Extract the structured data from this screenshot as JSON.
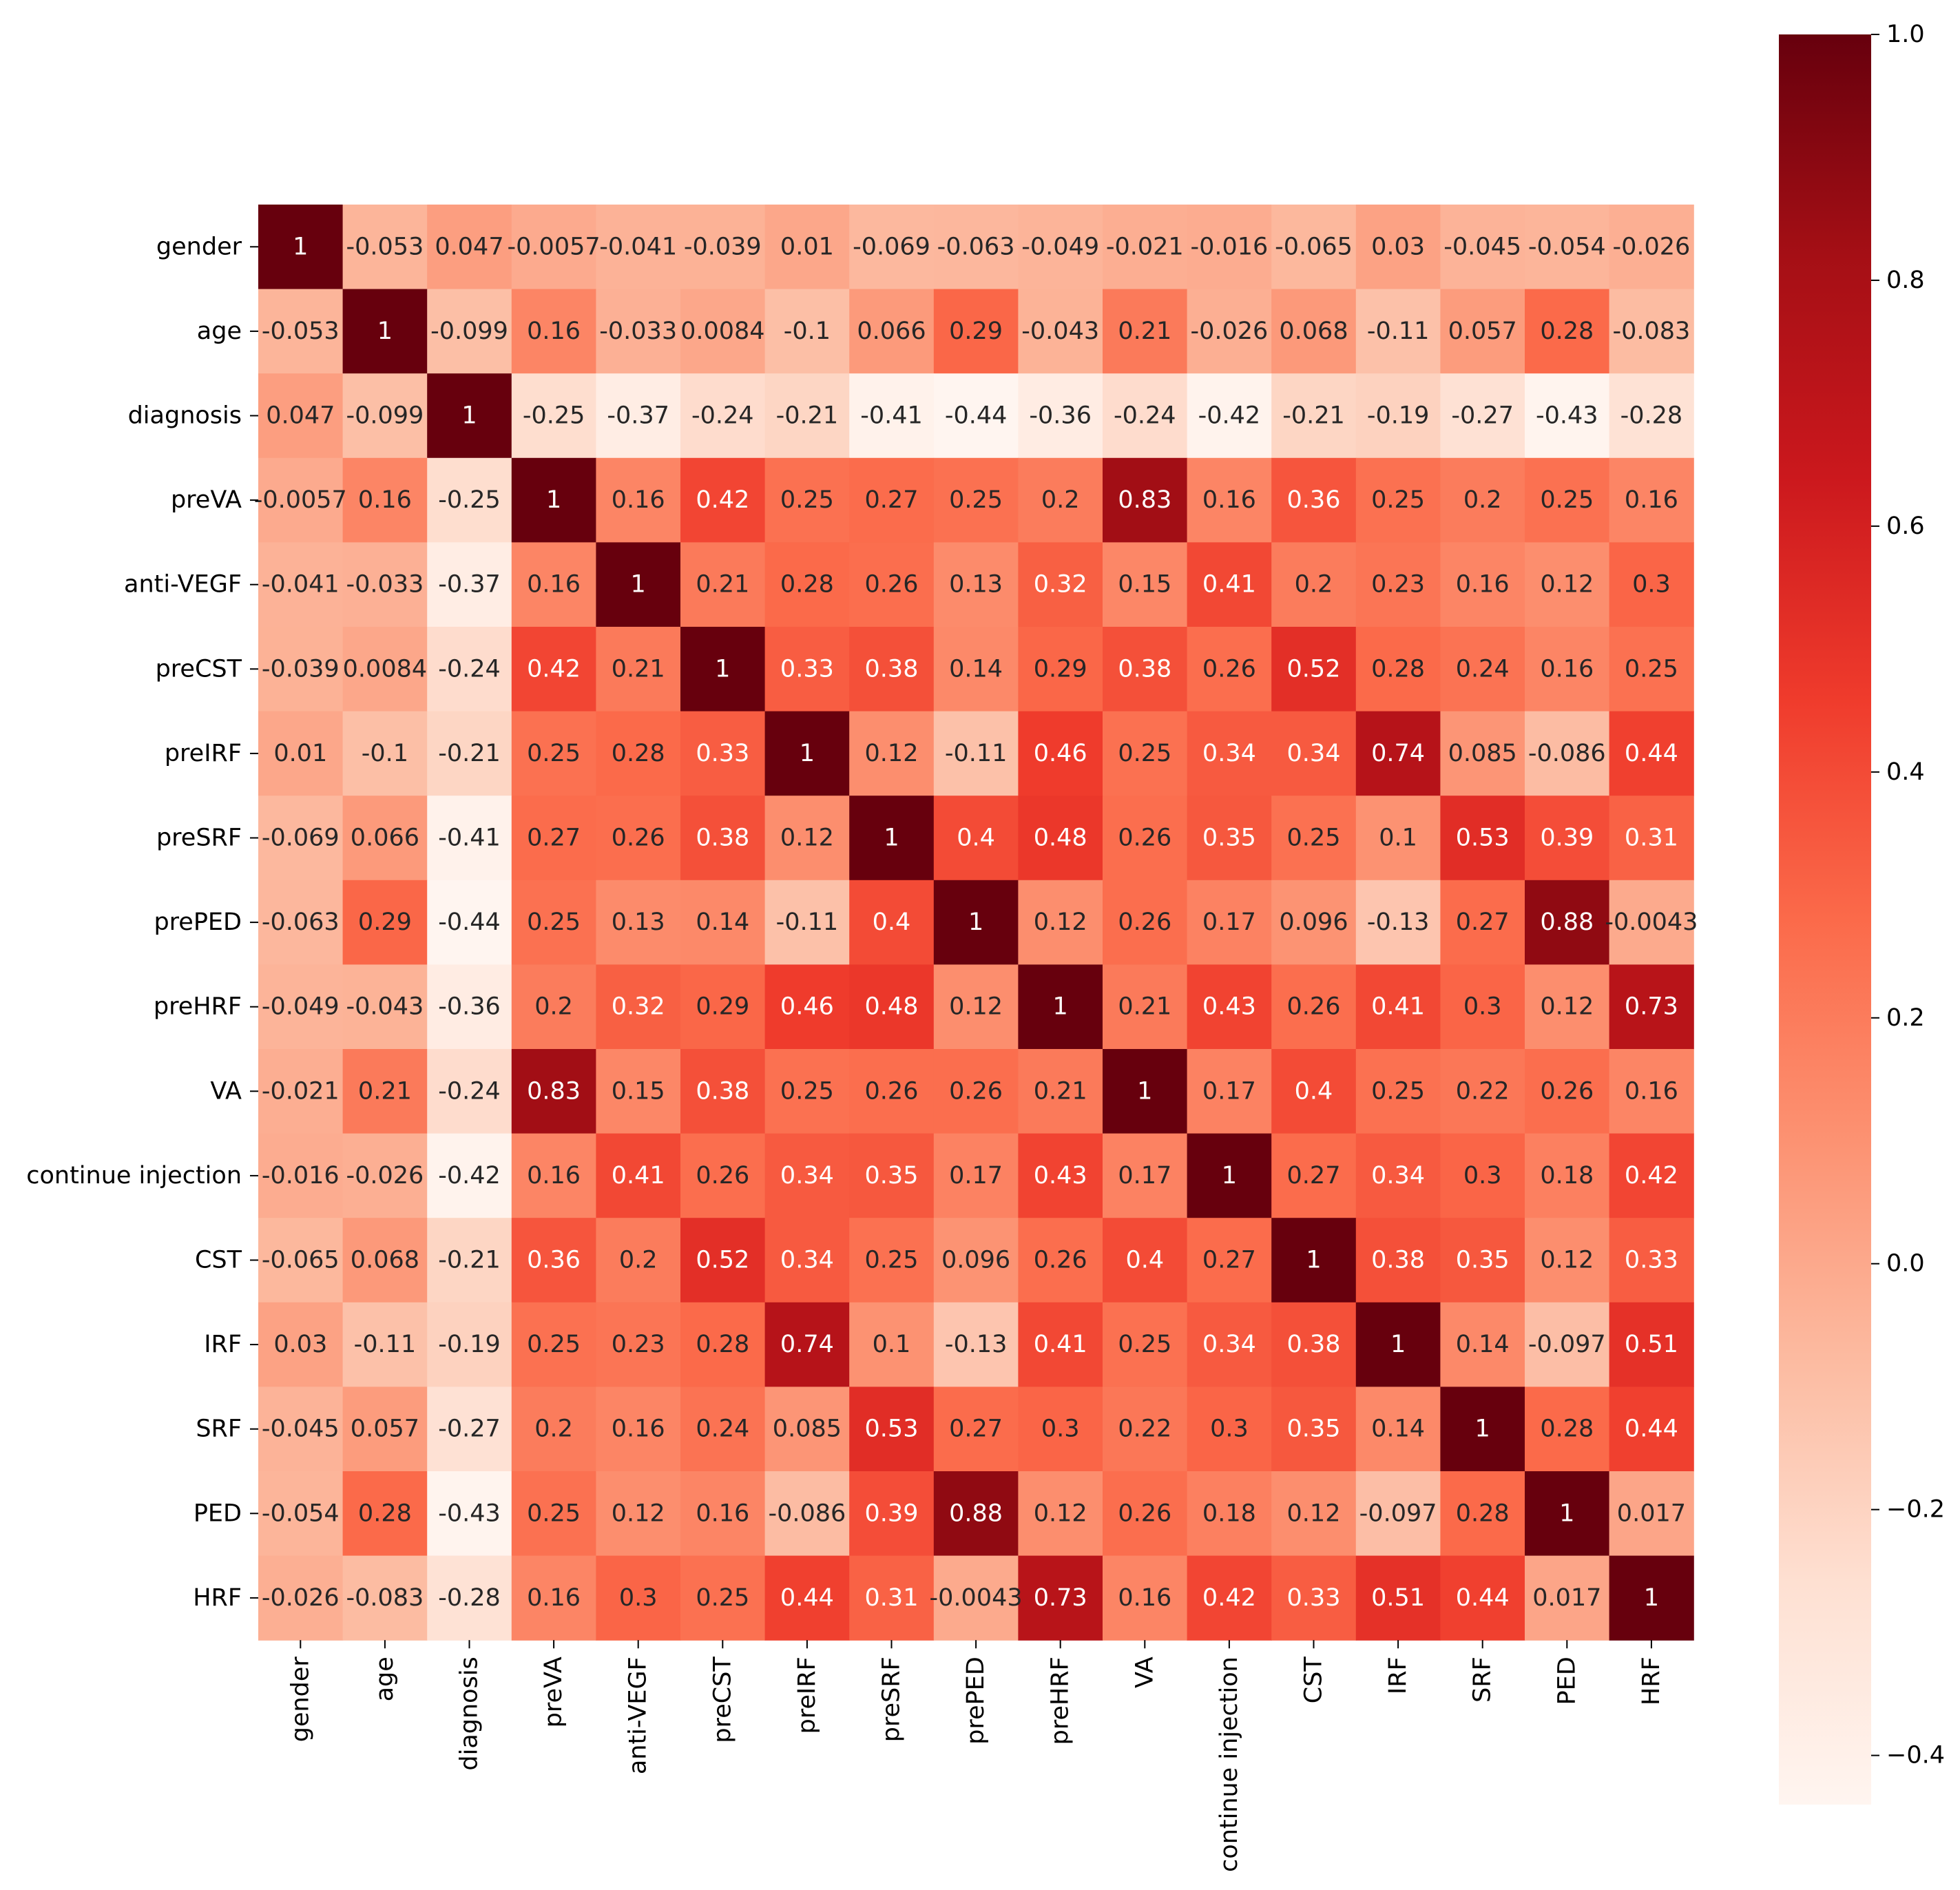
{
  "chart_data": {
    "type": "heatmap",
    "title": "",
    "xlabel": "",
    "ylabel": "",
    "colormap": "Reds",
    "vmin": -0.44,
    "vmax": 1.0,
    "colors": [
      "#fff5f0",
      "#fee0d2",
      "#fcbba1",
      "#fc9272",
      "#fb6a4a",
      "#ef3b2c",
      "#cb181d",
      "#a50f15",
      "#67000d"
    ],
    "labels": [
      "gender",
      "age",
      "diagnosis",
      "preVA",
      "anti-VEGF",
      "preCST",
      "preIRF",
      "preSRF",
      "prePED",
      "preHRF",
      "VA",
      "continue injection",
      "CST",
      "IRF",
      "SRF",
      "PED",
      "HRF"
    ],
    "display": [
      [
        "1",
        "-0.053",
        "0.047",
        "-0.0057",
        "-0.041",
        "-0.039",
        "0.01",
        "-0.069",
        "-0.063",
        "-0.049",
        "-0.021",
        "-0.016",
        "-0.065",
        "0.03",
        "-0.045",
        "-0.054",
        "-0.026"
      ],
      [
        "-0.053",
        "1",
        "-0.099",
        "0.16",
        "-0.033",
        "0.0084",
        "-0.1",
        "0.066",
        "0.29",
        "-0.043",
        "0.21",
        "-0.026",
        "0.068",
        "-0.11",
        "0.057",
        "0.28",
        "-0.083"
      ],
      [
        "0.047",
        "-0.099",
        "1",
        "-0.25",
        "-0.37",
        "-0.24",
        "-0.21",
        "-0.41",
        "-0.44",
        "-0.36",
        "-0.24",
        "-0.42",
        "-0.21",
        "-0.19",
        "-0.27",
        "-0.43",
        "-0.28"
      ],
      [
        "-0.0057",
        "0.16",
        "-0.25",
        "1",
        "0.16",
        "0.42",
        "0.25",
        "0.27",
        "0.25",
        "0.2",
        "0.83",
        "0.16",
        "0.36",
        "0.25",
        "0.2",
        "0.25",
        "0.16"
      ],
      [
        "-0.041",
        "-0.033",
        "-0.37",
        "0.16",
        "1",
        "0.21",
        "0.28",
        "0.26",
        "0.13",
        "0.32",
        "0.15",
        "0.41",
        "0.2",
        "0.23",
        "0.16",
        "0.12",
        "0.3"
      ],
      [
        "-0.039",
        "0.0084",
        "-0.24",
        "0.42",
        "0.21",
        "1",
        "0.33",
        "0.38",
        "0.14",
        "0.29",
        "0.38",
        "0.26",
        "0.52",
        "0.28",
        "0.24",
        "0.16",
        "0.25"
      ],
      [
        "0.01",
        "-0.1",
        "-0.21",
        "0.25",
        "0.28",
        "0.33",
        "1",
        "0.12",
        "-0.11",
        "0.46",
        "0.25",
        "0.34",
        "0.34",
        "0.74",
        "0.085",
        "-0.086",
        "0.44"
      ],
      [
        "-0.069",
        "0.066",
        "-0.41",
        "0.27",
        "0.26",
        "0.38",
        "0.12",
        "1",
        "0.4",
        "0.48",
        "0.26",
        "0.35",
        "0.25",
        "0.1",
        "0.53",
        "0.39",
        "0.31"
      ],
      [
        "-0.063",
        "0.29",
        "-0.44",
        "0.25",
        "0.13",
        "0.14",
        "-0.11",
        "0.4",
        "1",
        "0.12",
        "0.26",
        "0.17",
        "0.096",
        "-0.13",
        "0.27",
        "0.88",
        "-0.0043"
      ],
      [
        "-0.049",
        "-0.043",
        "-0.36",
        "0.2",
        "0.32",
        "0.29",
        "0.46",
        "0.48",
        "0.12",
        "1",
        "0.21",
        "0.43",
        "0.26",
        "0.41",
        "0.3",
        "0.12",
        "0.73"
      ],
      [
        "-0.021",
        "0.21",
        "-0.24",
        "0.83",
        "0.15",
        "0.38",
        "0.25",
        "0.26",
        "0.26",
        "0.21",
        "1",
        "0.17",
        "0.4",
        "0.25",
        "0.22",
        "0.26",
        "0.16"
      ],
      [
        "-0.016",
        "-0.026",
        "-0.42",
        "0.16",
        "0.41",
        "0.26",
        "0.34",
        "0.35",
        "0.17",
        "0.43",
        "0.17",
        "1",
        "0.27",
        "0.34",
        "0.3",
        "0.18",
        "0.42"
      ],
      [
        "-0.065",
        "0.068",
        "-0.21",
        "0.36",
        "0.2",
        "0.52",
        "0.34",
        "0.25",
        "0.096",
        "0.26",
        "0.4",
        "0.27",
        "1",
        "0.38",
        "0.35",
        "0.12",
        "0.33"
      ],
      [
        "0.03",
        "-0.11",
        "-0.19",
        "0.25",
        "0.23",
        "0.28",
        "0.74",
        "0.1",
        "-0.13",
        "0.41",
        "0.25",
        "0.34",
        "0.38",
        "1",
        "0.14",
        "-0.097",
        "0.51"
      ],
      [
        "-0.045",
        "0.057",
        "-0.27",
        "0.2",
        "0.16",
        "0.24",
        "0.085",
        "0.53",
        "0.27",
        "0.3",
        "0.22",
        "0.3",
        "0.35",
        "0.14",
        "1",
        "0.28",
        "0.44"
      ],
      [
        "-0.054",
        "0.28",
        "-0.43",
        "0.25",
        "0.12",
        "0.16",
        "-0.086",
        "0.39",
        "0.88",
        "0.12",
        "0.26",
        "0.18",
        "0.12",
        "-0.097",
        "0.28",
        "1",
        "0.017"
      ],
      [
        "-0.026",
        "-0.083",
        "-0.28",
        "0.16",
        "0.3",
        "0.25",
        "0.44",
        "0.31",
        "-0.0043",
        "0.73",
        "0.16",
        "0.42",
        "0.33",
        "0.51",
        "0.44",
        "0.017",
        "1"
      ]
    ],
    "colorbar": {
      "ticks": [
        1.0,
        0.8,
        0.6,
        0.4,
        0.2,
        0.0,
        -0.2,
        -0.4
      ],
      "tick_labels": [
        "1.0",
        "0.8",
        "0.6",
        "0.4",
        "0.2",
        "0.0",
        "−0.2",
        "−0.4"
      ]
    }
  }
}
